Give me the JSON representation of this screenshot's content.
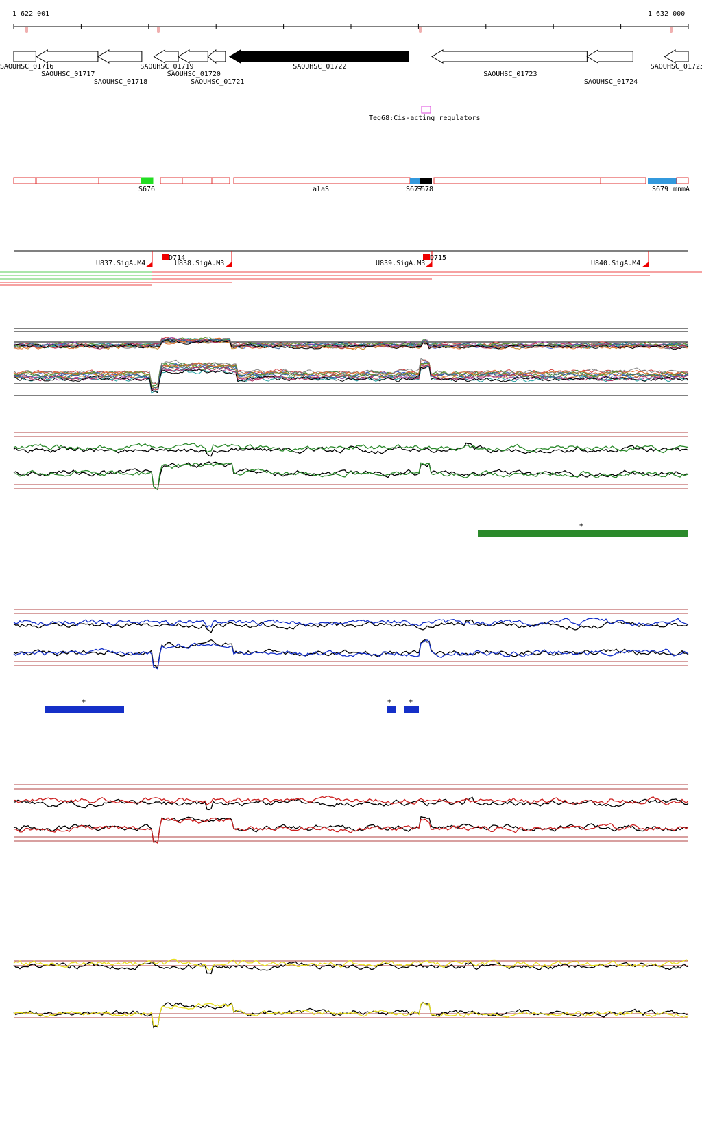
{
  "ruler": {
    "start_label": "1 622 001",
    "end_label": "1 632 000",
    "range_start": 1622001,
    "range_end": 1632000
  },
  "genes": [
    {
      "name": "SAOUHSC_01716",
      "start": 1622001,
      "end": 1622330,
      "strand": "+",
      "filled": false
    },
    {
      "name": "SAOUHSC_01717",
      "start": 1622340,
      "end": 1623250,
      "strand": "-",
      "filled": false
    },
    {
      "name": "SAOUHSC_01718",
      "start": 1623250,
      "end": 1623900,
      "strand": "-",
      "filled": false
    },
    {
      "name": "SAOUHSC_01719",
      "start": 1624080,
      "end": 1624440,
      "strand": "-",
      "filled": false
    },
    {
      "name": "SAOUHSC_01720",
      "start": 1624440,
      "end": 1624880,
      "strand": "-",
      "filled": false
    },
    {
      "name": "SAOUHSC_01721",
      "start": 1624880,
      "end": 1625140,
      "strand": "-",
      "filled": false
    },
    {
      "name": "SAOUHSC_01722",
      "start": 1625200,
      "end": 1627850,
      "strand": "-",
      "filled": true
    },
    {
      "name": "SAOUHSC_01723",
      "start": 1628200,
      "end": 1630500,
      "strand": "-",
      "filled": false
    },
    {
      "name": "SAOUHSC_01724",
      "start": 1630500,
      "end": 1631180,
      "strand": "-",
      "filled": false
    },
    {
      "name": "SAOUHSC_01725",
      "start": 1631650,
      "end": 1632000,
      "strand": "-",
      "filled": false
    }
  ],
  "regulator": {
    "label": "Teg68:Cis-acting regulators",
    "position": 1628080
  },
  "transcripts": {
    "labels": [
      {
        "text": "S676",
        "position": 1623900
      },
      {
        "text": "alaS",
        "position": 1626520
      },
      {
        "text": "S677",
        "position": 1627920
      },
      {
        "text": "S678",
        "position": 1628070
      },
      {
        "text": "S679",
        "position": 1631180
      },
      {
        "text": "mnmA",
        "position": 1631780
      }
    ]
  },
  "promoters": {
    "labels": [
      {
        "text": "U837.SigA.M4",
        "position": 1623200
      },
      {
        "text": "D714",
        "position": 1624280
      },
      {
        "text": "U838.SigA.M3",
        "position": 1624880
      },
      {
        "text": "U839.SigA.M3",
        "position": 1627820
      },
      {
        "text": "D715",
        "position": 1628080
      },
      {
        "text": "U840.SigA.M4",
        "position": 1631000
      }
    ]
  },
  "segments": {
    "green": {
      "label": "+",
      "start": 1628960,
      "end": 1632000
    },
    "blue": [
      {
        "label": "+",
        "start": 1622480,
        "end": 1623600
      },
      {
        "label": "+",
        "start": 1627400,
        "end": 1627540
      },
      {
        "label": "+",
        "start": 1627660,
        "end": 1627880
      }
    ]
  },
  "colors": {
    "gene_filled": "#000000",
    "transcript_outline": "#e03030",
    "s676": "#22dd22",
    "s677": "#3399dd",
    "s678": "#000000",
    "s679": "#3399dd",
    "promoter": "#ee0000",
    "regulator_box": "#dd44dd",
    "green_track": "#2b8a2b",
    "blue_track": "#1530c8",
    "red_track": "#cc2020",
    "yellow_track": "#e8e020",
    "baseline": "#b04040"
  }
}
